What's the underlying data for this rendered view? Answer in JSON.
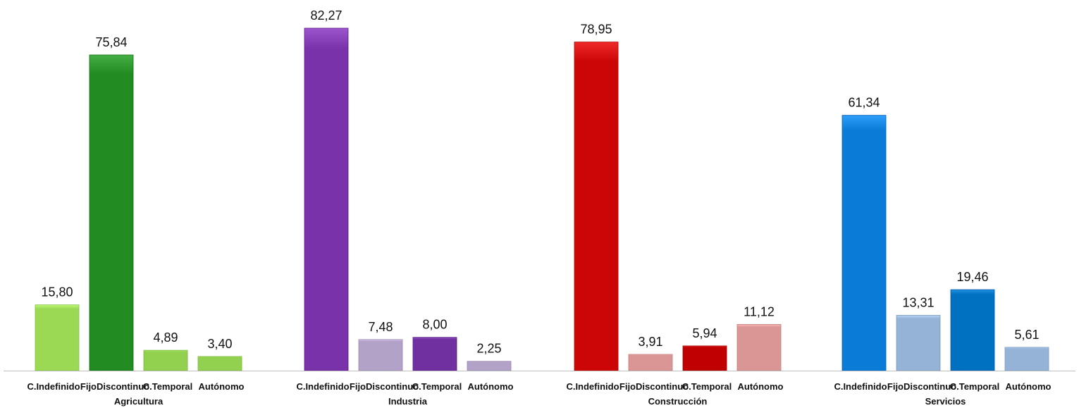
{
  "chart_data": {
    "type": "bar",
    "grouped": true,
    "subcategories": [
      "C.Indefinido",
      "FijoDiscontinuo",
      "C.Temporal",
      "Autónomo"
    ],
    "groups": [
      {
        "name": "Agricultura",
        "values": [
          15.8,
          75.84,
          4.89,
          3.4
        ],
        "labels": [
          "15,80",
          "75,84",
          "4,89",
          "3,40"
        ],
        "colors": [
          "#9BD955",
          "#228B22",
          "#92D050",
          "#92D050"
        ]
      },
      {
        "name": "Industria",
        "values": [
          82.27,
          7.48,
          8.0,
          2.25
        ],
        "labels": [
          "82,27",
          "7,48",
          "8,00",
          "2,25"
        ],
        "colors": [
          "#7A32AA",
          "#B3A2C7",
          "#7030A0",
          "#B3A2C7"
        ]
      },
      {
        "name": "Construcción",
        "values": [
          78.95,
          3.91,
          5.94,
          11.12
        ],
        "labels": [
          "78,95",
          "3,91",
          "5,94",
          "11,12"
        ],
        "colors": [
          "#CC0606",
          "#D99694",
          "#C00000",
          "#D99694"
        ]
      },
      {
        "name": "Servicios",
        "values": [
          61.34,
          13.31,
          19.46,
          5.61
        ],
        "labels": [
          "61,34",
          "13,31",
          "19,46",
          "5,61"
        ],
        "colors": [
          "#0A7BD6",
          "#95B3D7",
          "#0070C0",
          "#95B3D7"
        ]
      }
    ],
    "ylim": [
      0,
      90
    ],
    "grid": false,
    "legend": "none",
    "title": "",
    "xlabel": "",
    "ylabel": ""
  }
}
